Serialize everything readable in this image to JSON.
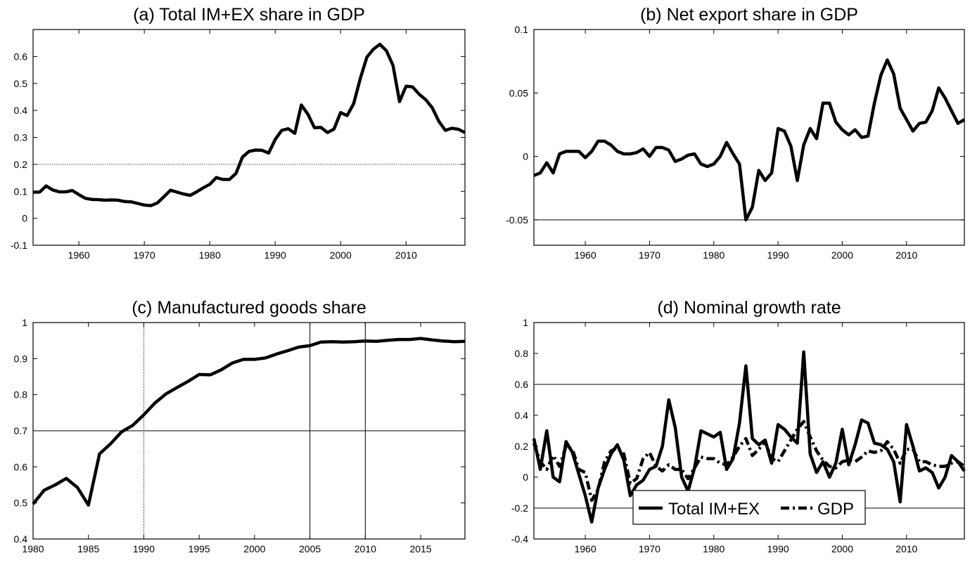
{
  "chart_data": [
    {
      "id": "a",
      "type": "line",
      "title": "(a) Total IM+EX share in GDP",
      "xlim": [
        1953,
        2019
      ],
      "ylim": [
        -0.1,
        0.7
      ],
      "xticks": [
        1960,
        1970,
        1980,
        1990,
        2000,
        2010
      ],
      "yticks": [
        -0.1,
        0,
        0.1,
        0.2,
        0.3,
        0.4,
        0.5,
        0.6
      ],
      "ytick_labels": [
        "-0.1",
        "0",
        "0.1",
        "0.2",
        "0.3",
        "0.4",
        "0.5",
        "0.6"
      ],
      "hlines": [
        0.2
      ],
      "vlines": [],
      "series": [
        {
          "style": "solid",
          "x": [
            1953,
            1954,
            1955,
            1956,
            1957,
            1958,
            1959,
            1960,
            1961,
            1962,
            1963,
            1964,
            1965,
            1966,
            1967,
            1968,
            1969,
            1970,
            1971,
            1972,
            1973,
            1974,
            1975,
            1976,
            1977,
            1978,
            1979,
            1980,
            1981,
            1982,
            1983,
            1984,
            1985,
            1986,
            1987,
            1988,
            1989,
            1990,
            1991,
            1992,
            1993,
            1994,
            1995,
            1996,
            1997,
            1998,
            1999,
            2000,
            2001,
            2002,
            2003,
            2004,
            2005,
            2006,
            2007,
            2008,
            2009,
            2010,
            2011,
            2012,
            2013,
            2014,
            2015,
            2016,
            2017,
            2018,
            2019
          ],
          "y": [
            0.097,
            0.097,
            0.12,
            0.105,
            0.098,
            0.098,
            0.103,
            0.088,
            0.074,
            0.07,
            0.069,
            0.067,
            0.068,
            0.067,
            0.062,
            0.061,
            0.055,
            0.049,
            0.047,
            0.057,
            0.08,
            0.104,
            0.097,
            0.09,
            0.085,
            0.098,
            0.113,
            0.126,
            0.151,
            0.144,
            0.144,
            0.166,
            0.227,
            0.248,
            0.253,
            0.252,
            0.242,
            0.292,
            0.326,
            0.332,
            0.315,
            0.42,
            0.386,
            0.336,
            0.337,
            0.318,
            0.331,
            0.392,
            0.381,
            0.425,
            0.518,
            0.597,
            0.627,
            0.645,
            0.621,
            0.567,
            0.433,
            0.49,
            0.487,
            0.46,
            0.44,
            0.41,
            0.36,
            0.326,
            0.334,
            0.33,
            0.318
          ]
        }
      ]
    },
    {
      "id": "b",
      "type": "line",
      "title": "(b) Net export share in GDP",
      "xlim": [
        1952,
        2019
      ],
      "ylim": [
        -0.07,
        0.1
      ],
      "xticks": [
        1960,
        1970,
        1980,
        1990,
        2000,
        2010
      ],
      "yticks": [
        -0.05,
        0,
        0.05,
        0.1
      ],
      "ytick_labels": [
        "-0.05",
        "0",
        "0.05",
        "0.1"
      ],
      "hlines": [
        -0.05
      ],
      "vlines": [],
      "series": [
        {
          "style": "solid",
          "x": [
            1952,
            1953,
            1954,
            1955,
            1956,
            1957,
            1958,
            1959,
            1960,
            1961,
            1962,
            1963,
            1964,
            1965,
            1966,
            1967,
            1968,
            1969,
            1970,
            1971,
            1972,
            1973,
            1974,
            1975,
            1976,
            1977,
            1978,
            1979,
            1980,
            1981,
            1982,
            1983,
            1984,
            1985,
            1986,
            1987,
            1988,
            1989,
            1990,
            1991,
            1992,
            1993,
            1994,
            1995,
            1996,
            1997,
            1998,
            1999,
            2000,
            2001,
            2002,
            2003,
            2004,
            2005,
            2006,
            2007,
            2008,
            2009,
            2010,
            2011,
            2012,
            2013,
            2014,
            2015,
            2016,
            2017,
            2018,
            2019
          ],
          "y": [
            -0.015,
            -0.013,
            -0.005,
            -0.013,
            0.002,
            0.004,
            0.004,
            0.004,
            -0.001,
            0.004,
            0.012,
            0.012,
            0.009,
            0.004,
            0.002,
            0.002,
            0.003,
            0.006,
            0.0,
            0.007,
            0.007,
            0.005,
            -0.004,
            -0.002,
            0.001,
            0.002,
            -0.006,
            -0.008,
            -0.006,
            0.0,
            0.011,
            0.002,
            -0.006,
            -0.05,
            -0.04,
            -0.011,
            -0.019,
            -0.013,
            0.022,
            0.02,
            0.008,
            -0.019,
            0.009,
            0.022,
            0.014,
            0.042,
            0.042,
            0.027,
            0.021,
            0.017,
            0.021,
            0.015,
            0.016,
            0.042,
            0.064,
            0.076,
            0.065,
            0.038,
            0.029,
            0.02,
            0.026,
            0.027,
            0.036,
            0.054,
            0.046,
            0.036,
            0.026,
            0.029
          ]
        }
      ]
    },
    {
      "id": "c",
      "type": "line",
      "title": "(c) Manufactured goods share",
      "xlim": [
        1980,
        2019
      ],
      "ylim": [
        0.4,
        1.0
      ],
      "xticks": [
        1980,
        1985,
        1990,
        1995,
        2000,
        2005,
        2010,
        2015
      ],
      "yticks": [
        0.4,
        0.5,
        0.6,
        0.7,
        0.8,
        0.9,
        1.0
      ],
      "ytick_labels": [
        "0.4",
        "0.5",
        "0.6",
        "0.7",
        "0.8",
        "0.9",
        "1"
      ],
      "hlines": [
        0.7
      ],
      "vlines": [
        1990,
        2005,
        2010
      ],
      "series": [
        {
          "style": "solid",
          "x": [
            1980,
            1981,
            1982,
            1983,
            1984,
            1985,
            1986,
            1987,
            1988,
            1989,
            1990,
            1991,
            1992,
            1993,
            1994,
            1995,
            1996,
            1997,
            1998,
            1999,
            2000,
            2001,
            2002,
            2003,
            2004,
            2005,
            2006,
            2007,
            2008,
            2009,
            2010,
            2011,
            2012,
            2013,
            2014,
            2015,
            2016,
            2017,
            2018,
            2019
          ],
          "y": [
            0.497,
            0.535,
            0.55,
            0.568,
            0.543,
            0.494,
            0.636,
            0.664,
            0.697,
            0.715,
            0.744,
            0.777,
            0.802,
            0.82,
            0.837,
            0.856,
            0.855,
            0.869,
            0.888,
            0.898,
            0.898,
            0.902,
            0.913,
            0.922,
            0.932,
            0.936,
            0.946,
            0.947,
            0.946,
            0.947,
            0.949,
            0.948,
            0.951,
            0.953,
            0.953,
            0.956,
            0.952,
            0.949,
            0.947,
            0.948
          ]
        }
      ]
    },
    {
      "id": "d",
      "type": "line",
      "title": "(d) Nominal growth rate",
      "xlim": [
        1952,
        2019
      ],
      "ylim": [
        -0.4,
        1.0
      ],
      "xticks": [
        1960,
        1970,
        1980,
        1990,
        2000,
        2010
      ],
      "yticks": [
        -0.4,
        -0.2,
        0,
        0.2,
        0.4,
        0.6,
        0.8,
        1.0
      ],
      "ytick_labels": [
        "-0.4",
        "-0.2",
        "0",
        "0.2",
        "0.4",
        "0.6",
        "0.8",
        "1"
      ],
      "hlines": [
        0.6,
        -0.2
      ],
      "vlines": [],
      "legend": {
        "position": "bottom-center",
        "entries": [
          "Total IM+EX",
          "GDP"
        ]
      },
      "series": [
        {
          "name": "Total IM+EX",
          "style": "solid",
          "x": [
            1952,
            1953,
            1954,
            1955,
            1956,
            1957,
            1958,
            1959,
            1960,
            1961,
            1962,
            1963,
            1964,
            1965,
            1966,
            1967,
            1968,
            1969,
            1970,
            1971,
            1972,
            1973,
            1974,
            1975,
            1976,
            1977,
            1978,
            1979,
            1980,
            1981,
            1982,
            1983,
            1984,
            1985,
            1986,
            1987,
            1988,
            1989,
            1990,
            1991,
            1992,
            1993,
            1994,
            1995,
            1996,
            1997,
            1998,
            1999,
            2000,
            2001,
            2002,
            2003,
            2004,
            2005,
            2006,
            2007,
            2008,
            2009,
            2010,
            2011,
            2012,
            2013,
            2014,
            2015,
            2016,
            2017,
            2018,
            2019
          ],
          "y": [
            0.25,
            0.05,
            0.3,
            0.0,
            -0.03,
            0.23,
            0.16,
            0.02,
            -0.12,
            -0.29,
            -0.07,
            0.05,
            0.15,
            0.21,
            0.11,
            -0.12,
            -0.05,
            -0.02,
            0.05,
            0.07,
            0.2,
            0.5,
            0.32,
            0.0,
            -0.09,
            0.06,
            0.3,
            0.28,
            0.26,
            0.29,
            0.05,
            0.12,
            0.35,
            0.72,
            0.25,
            0.21,
            0.24,
            0.09,
            0.34,
            0.31,
            0.26,
            0.22,
            0.81,
            0.15,
            0.03,
            0.1,
            0.0,
            0.09,
            0.31,
            0.08,
            0.21,
            0.37,
            0.35,
            0.22,
            0.21,
            0.18,
            0.1,
            -0.16,
            0.34,
            0.2,
            0.04,
            0.06,
            0.03,
            -0.07,
            0.0,
            0.14,
            0.1,
            0.04
          ]
        },
        {
          "name": "GDP",
          "style": "dashdot",
          "x": [
            1952,
            1953,
            1954,
            1955,
            1956,
            1957,
            1958,
            1959,
            1960,
            1961,
            1962,
            1963,
            1964,
            1965,
            1966,
            1967,
            1968,
            1969,
            1970,
            1971,
            1972,
            1973,
            1974,
            1975,
            1976,
            1977,
            1978,
            1979,
            1980,
            1981,
            1982,
            1983,
            1984,
            1985,
            1986,
            1987,
            1988,
            1989,
            1990,
            1991,
            1992,
            1993,
            1994,
            1995,
            1996,
            1997,
            1998,
            1999,
            2000,
            2001,
            2002,
            2003,
            2004,
            2005,
            2006,
            2007,
            2008,
            2009,
            2010,
            2011,
            2012,
            2013,
            2014,
            2015,
            2016,
            2017,
            2018,
            2019
          ],
          "y": [
            0.22,
            0.1,
            0.05,
            0.14,
            0.07,
            0.2,
            0.18,
            0.05,
            0.03,
            -0.15,
            -0.08,
            0.1,
            0.17,
            0.19,
            0.15,
            -0.04,
            -0.01,
            0.12,
            0.16,
            0.07,
            0.04,
            0.08,
            0.05,
            0.05,
            -0.01,
            0.06,
            0.13,
            0.12,
            0.12,
            0.09,
            0.08,
            0.13,
            0.2,
            0.25,
            0.14,
            0.18,
            0.23,
            0.12,
            0.1,
            0.17,
            0.24,
            0.31,
            0.36,
            0.26,
            0.17,
            0.11,
            0.07,
            0.06,
            0.1,
            0.11,
            0.1,
            0.13,
            0.17,
            0.16,
            0.17,
            0.23,
            0.18,
            0.09,
            0.18,
            0.18,
            0.1,
            0.1,
            0.08,
            0.07,
            0.07,
            0.09,
            0.1,
            0.07
          ]
        }
      ]
    }
  ]
}
